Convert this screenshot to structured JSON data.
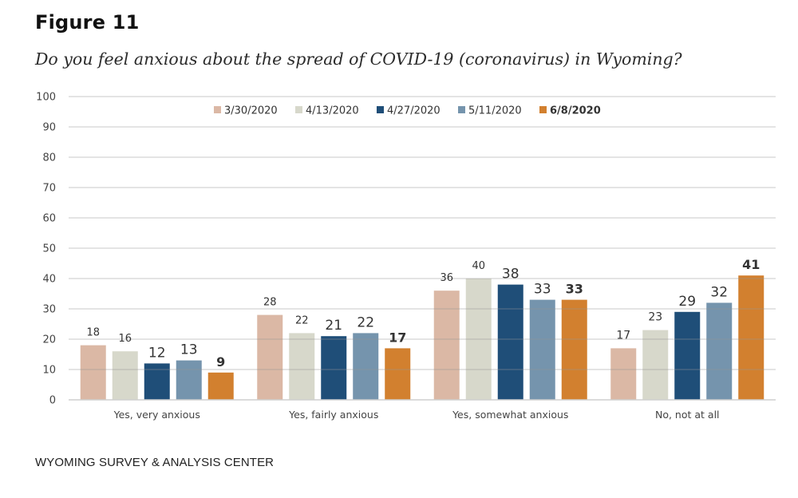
{
  "figure": {
    "label": "Figure 11",
    "title": "Do you feel anxious about the spread of COVID-19 (coronavirus) in Wyoming?",
    "source": "WYOMING SURVEY & ANALYSIS CENTER"
  },
  "chart_data": {
    "type": "bar",
    "title": "Do you feel anxious about the spread of COVID-19 (coronavirus) in Wyoming?",
    "xlabel": "",
    "ylabel": "",
    "ylim": [
      0,
      100
    ],
    "yticks": [
      0,
      10,
      20,
      30,
      40,
      50,
      60,
      70,
      80,
      90,
      100
    ],
    "grid": true,
    "legend_position": "top-center",
    "categories": [
      "Yes, very anxious",
      "Yes, fairly anxious",
      "Yes, somewhat anxious",
      "No, not at all"
    ],
    "series": [
      {
        "name": "3/30/2020",
        "color": "#dbb8a5",
        "bold": false,
        "values": [
          18,
          28,
          36,
          17
        ]
      },
      {
        "name": "4/13/2020",
        "color": "#d7d8cb",
        "bold": false,
        "values": [
          16,
          22,
          40,
          23
        ]
      },
      {
        "name": "4/27/2020",
        "color": "#1f4e78",
        "bold": false,
        "values": [
          12,
          21,
          38,
          29
        ]
      },
      {
        "name": "5/11/2020",
        "color": "#7594ad",
        "bold": false,
        "values": [
          13,
          22,
          33,
          32
        ]
      },
      {
        "name": "6/8/2020",
        "color": "#d2802f",
        "bold": true,
        "values": [
          9,
          17,
          33,
          41
        ]
      }
    ]
  }
}
